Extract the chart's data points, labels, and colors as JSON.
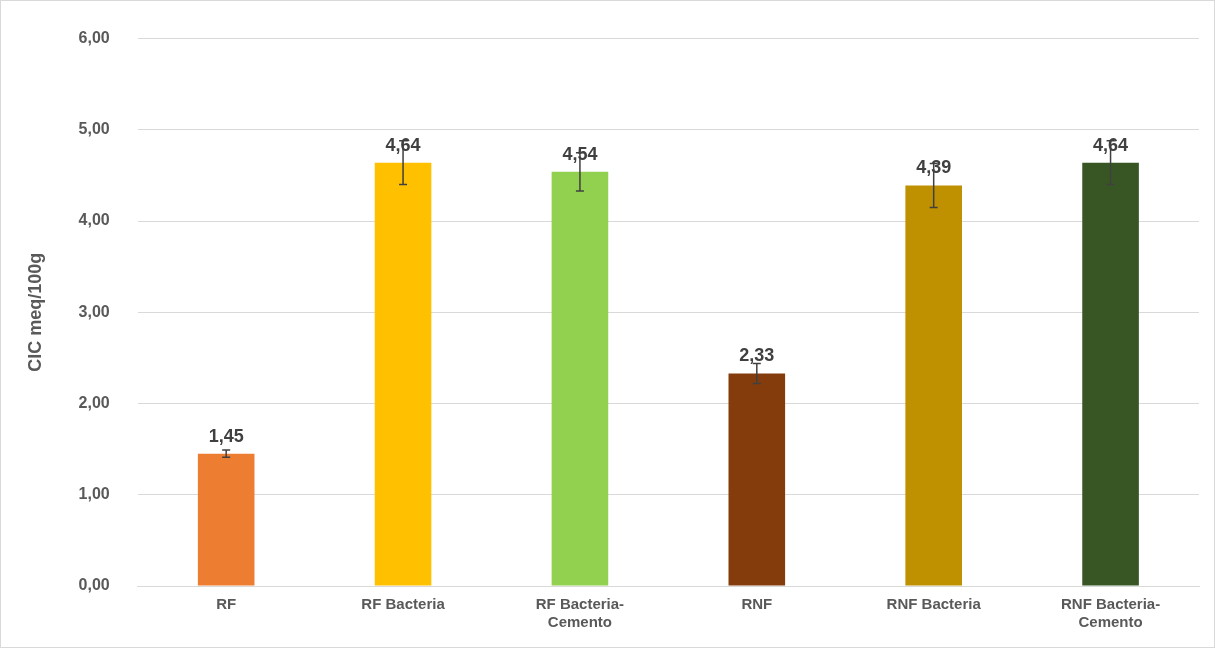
{
  "chart_data": {
    "type": "bar",
    "ylabel": "CIC meq/100g",
    "categories": [
      "RF",
      "RF Bacteria",
      "RF Bacteria-Cemento",
      "RNF",
      "RNF Bacteria",
      "RNF Bacteria-Cemento"
    ],
    "values": [
      1.45,
      4.64,
      4.54,
      2.33,
      4.39,
      4.64
    ],
    "colors": [
      "#ed7d31",
      "#ffc000",
      "#92d050",
      "#843c0c",
      "#bf9000",
      "#375623"
    ],
    "errors": [
      0.04,
      0.24,
      0.21,
      0.11,
      0.24,
      0.24
    ],
    "ylim": [
      0,
      6
    ],
    "yticks": [
      {
        "value": 0,
        "label": "0,00"
      },
      {
        "value": 1,
        "label": "1,00"
      },
      {
        "value": 2,
        "label": "2,00"
      },
      {
        "value": 3,
        "label": "3,00"
      },
      {
        "value": 4,
        "label": "4,00"
      },
      {
        "value": 5,
        "label": "5,00"
      },
      {
        "value": 6,
        "label": "6,00"
      }
    ],
    "value_labels": [
      "1,45",
      "4,64",
      "4,54",
      "2,33",
      "4,39",
      "4,64"
    ],
    "grid": "y",
    "legend": false
  }
}
